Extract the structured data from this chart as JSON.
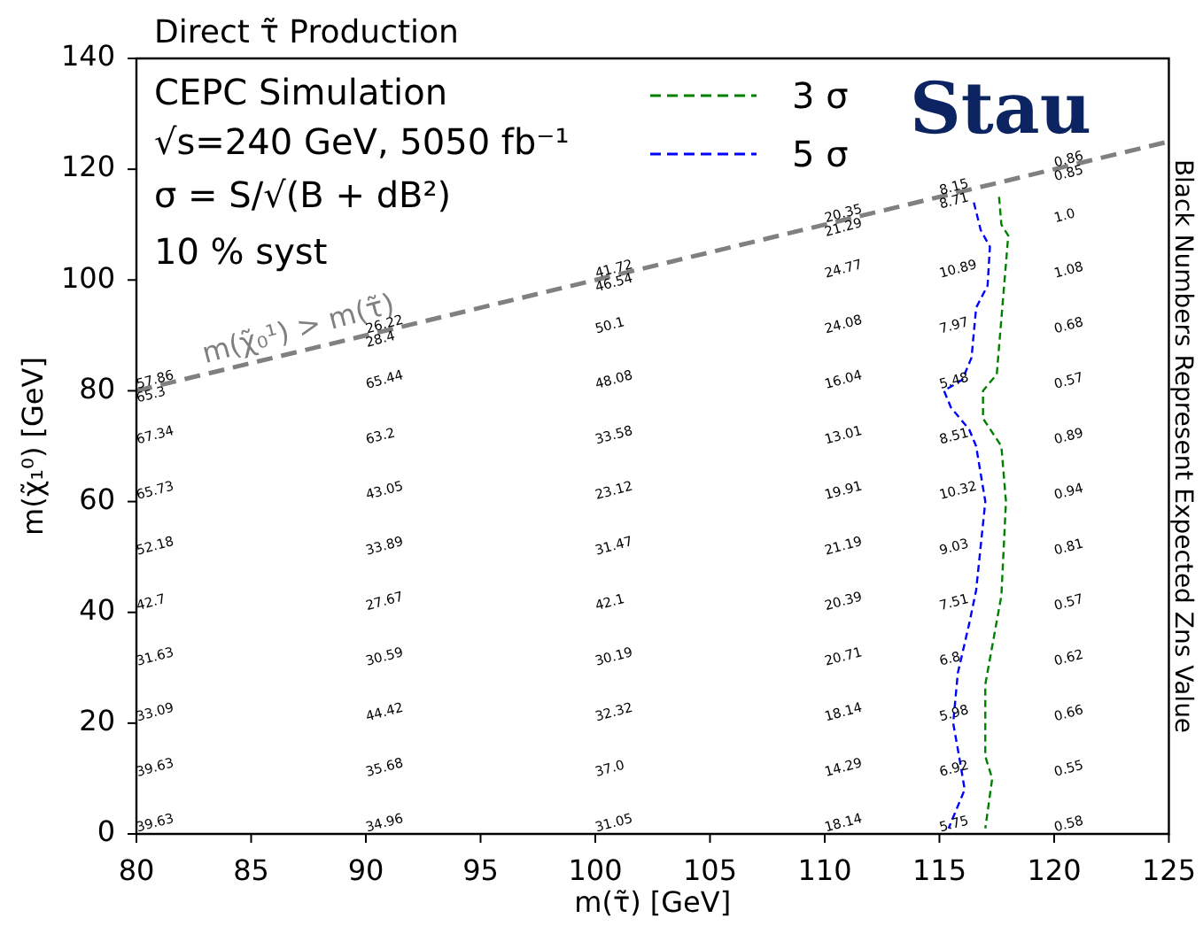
{
  "chart_data": {
    "type": "line",
    "title": "Direct τ̃ Production",
    "xlabel": "m(τ̃) [GeV]",
    "ylabel": "m(χ̃₁⁰) [GeV]",
    "y2label": "Black Numbers Represent Expected Zns Value",
    "xlim": [
      80,
      125
    ],
    "xticks": [
      80,
      85,
      90,
      95,
      100,
      105,
      110,
      115,
      120,
      125
    ],
    "ylim": [
      0,
      140
    ],
    "yticks": [
      0,
      20,
      40,
      60,
      80,
      100,
      120,
      140
    ],
    "legend": "top",
    "line_style": "dashed",
    "series": [
      {
        "color": "#808080",
        "x": [
          80,
          125
        ],
        "values": [
          80,
          125
        ]
      },
      {
        "name": "3 σ",
        "color": "#008000",
        "x": [
          117.6,
          117.7,
          118.0,
          117.8,
          117.7,
          117.5,
          116.9,
          116.9,
          117.7,
          117.9,
          117.7,
          117.0,
          117.0,
          117.3,
          117.0
        ],
        "values": [
          115,
          110,
          108,
          98,
          93,
          83,
          80,
          75,
          70,
          60,
          43,
          27,
          14,
          10,
          1
        ]
      },
      {
        "name": "5 σ",
        "color": "#0000ff",
        "x": [
          116.5,
          116.8,
          117.2,
          117.1,
          116.6,
          116.4,
          116.0,
          115.2,
          115.5,
          116.3,
          116.6,
          117.0,
          116.8,
          116.6,
          116.3,
          115.8,
          115.6,
          115.9,
          116.1,
          115.4
        ],
        "values": [
          114,
          109,
          106,
          99,
          95,
          86,
          82,
          80,
          77,
          73,
          70,
          60,
          52,
          44,
          38,
          29,
          20,
          13,
          8,
          1
        ]
      }
    ],
    "annotations": [
      "CEPC Simulation",
      "√s=240 GeV, 5050 fb⁻¹",
      "σ = S/√(B + dB²)",
      "10 % syst",
      "Stau",
      {
        "text": "m(χ̃₀¹) > m(τ̃)",
        "x": 83,
        "y": 85
      },
      "39.63",
      "39.63",
      "33.09",
      "31.63",
      "42.7",
      "52.18",
      "65.73",
      "67.34",
      "65.3",
      "57.86",
      "34.96",
      "35.68",
      "44.42",
      "30.59",
      "27.67",
      "33.89",
      "43.05",
      "63.2",
      "65.44",
      "28.4",
      "26.22",
      "31.05",
      "37.0",
      "32.32",
      "30.19",
      "42.1",
      "31.47",
      "23.12",
      "33.58",
      "48.08",
      "50.1",
      "46.54",
      "41.72",
      "18.14",
      "14.29",
      "18.14",
      "20.71",
      "20.39",
      "21.19",
      "19.91",
      "13.01",
      "16.04",
      "24.08",
      "24.77",
      "21.29",
      "20.35",
      "5.75",
      "6.92",
      "5.98",
      "6.8",
      "7.51",
      "9.03",
      "10.32",
      "8.51",
      "5.48",
      "7.97",
      "10.89",
      "8.71",
      "8.15",
      "0.58",
      "0.55",
      "0.66",
      "0.62",
      "0.57",
      "0.81",
      "0.94",
      "0.89",
      "0.57",
      "0.68",
      "1.08",
      "1.0",
      "0.85",
      "0.86"
    ]
  }
}
